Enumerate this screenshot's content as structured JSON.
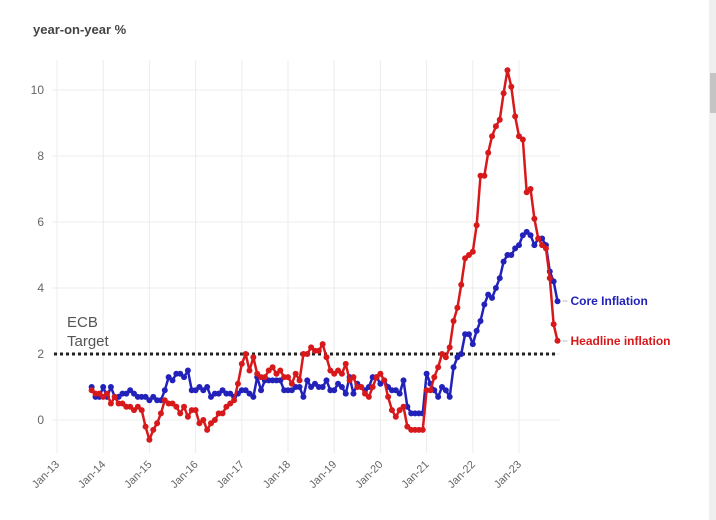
{
  "chart_data": {
    "type": "line",
    "title": "year-on-year %",
    "xlabel": "",
    "ylabel": "year-on-year %",
    "ylim": [
      -1,
      10.9
    ],
    "yticks": [
      0,
      2,
      4,
      6,
      8,
      10
    ],
    "ytick_labels": [
      "0",
      "2",
      "4",
      "6",
      "8",
      "10"
    ],
    "xticks": [
      "Jan-13",
      "Jan-14",
      "Jan-15",
      "Jan-16",
      "Jan-17",
      "Jan-18",
      "Jan-19",
      "Jan-20",
      "Jan-21",
      "Jan-22",
      "Jan-23"
    ],
    "start": "Oct-13",
    "frequency": "monthly",
    "grid": true,
    "reference_line": {
      "value": 2,
      "label_line1": "ECB",
      "label_line2": "Target"
    },
    "series": [
      {
        "name": "Core Inflation",
        "color": "#2222bb",
        "values": [
          1.0,
          0.7,
          0.7,
          1.0,
          0.7,
          1.0,
          0.7,
          0.7,
          0.8,
          0.8,
          0.9,
          0.8,
          0.7,
          0.7,
          0.7,
          0.6,
          0.7,
          0.6,
          0.6,
          0.9,
          1.3,
          1.2,
          1.4,
          1.4,
          1.3,
          1.5,
          0.9,
          0.9,
          1.0,
          0.9,
          1.0,
          0.7,
          0.8,
          0.8,
          0.9,
          0.8,
          0.8,
          0.7,
          0.8,
          0.9,
          0.9,
          0.8,
          0.7,
          1.3,
          0.9,
          1.2,
          1.2,
          1.2,
          1.2,
          1.2,
          0.9,
          0.9,
          0.9,
          1.0,
          1.0,
          0.7,
          1.2,
          1.0,
          1.1,
          1.0,
          1.0,
          1.2,
          0.9,
          0.9,
          1.1,
          1.0,
          0.8,
          1.3,
          0.8,
          1.1,
          1.0,
          0.9,
          1.0,
          1.3,
          1.3,
          1.1,
          1.2,
          1.0,
          0.9,
          0.9,
          0.8,
          1.2,
          0.4,
          0.2,
          0.2,
          0.2,
          0.2,
          1.4,
          1.1,
          0.9,
          0.7,
          1.0,
          0.9,
          0.7,
          1.6,
          1.9,
          2.0,
          2.6,
          2.6,
          2.3,
          2.7,
          3.0,
          3.5,
          3.8,
          3.7,
          4.0,
          4.3,
          4.8,
          5.0,
          5.0,
          5.2,
          5.3,
          5.6,
          5.7,
          5.6,
          5.3,
          5.5,
          5.5,
          5.3,
          4.5,
          4.2,
          3.6
        ]
      },
      {
        "name": "Headline inflation",
        "color": "#d7191c",
        "values": [
          0.9,
          0.8,
          0.8,
          0.7,
          0.8,
          0.5,
          0.7,
          0.5,
          0.5,
          0.4,
          0.4,
          0.3,
          0.4,
          0.3,
          -0.2,
          -0.6,
          -0.3,
          -0.1,
          0.2,
          0.6,
          0.5,
          0.5,
          0.4,
          0.2,
          0.4,
          0.1,
          0.3,
          0.3,
          -0.1,
          0.0,
          -0.3,
          -0.1,
          0.0,
          0.2,
          0.2,
          0.4,
          0.5,
          0.6,
          1.1,
          1.7,
          2.0,
          1.5,
          1.9,
          1.4,
          1.3,
          1.3,
          1.5,
          1.6,
          1.4,
          1.5,
          1.3,
          1.3,
          1.1,
          1.4,
          1.2,
          2.0,
          2.0,
          2.2,
          2.1,
          2.1,
          2.3,
          1.9,
          1.5,
          1.4,
          1.5,
          1.4,
          1.7,
          1.2,
          1.3,
          1.0,
          1.0,
          0.8,
          0.7,
          1.0,
          1.3,
          1.4,
          1.2,
          0.7,
          0.3,
          0.1,
          0.3,
          0.4,
          -0.2,
          -0.3,
          -0.3,
          -0.3,
          -0.3,
          0.9,
          0.9,
          1.3,
          1.6,
          2.0,
          1.9,
          2.2,
          3.0,
          3.4,
          4.1,
          4.9,
          5.0,
          5.1,
          5.9,
          7.4,
          7.4,
          8.1,
          8.6,
          8.9,
          9.1,
          9.9,
          10.6,
          10.1,
          9.2,
          8.6,
          8.5,
          6.9,
          7.0,
          6.1,
          5.5,
          5.3,
          5.2,
          4.3,
          2.9,
          2.4
        ]
      }
    ]
  }
}
